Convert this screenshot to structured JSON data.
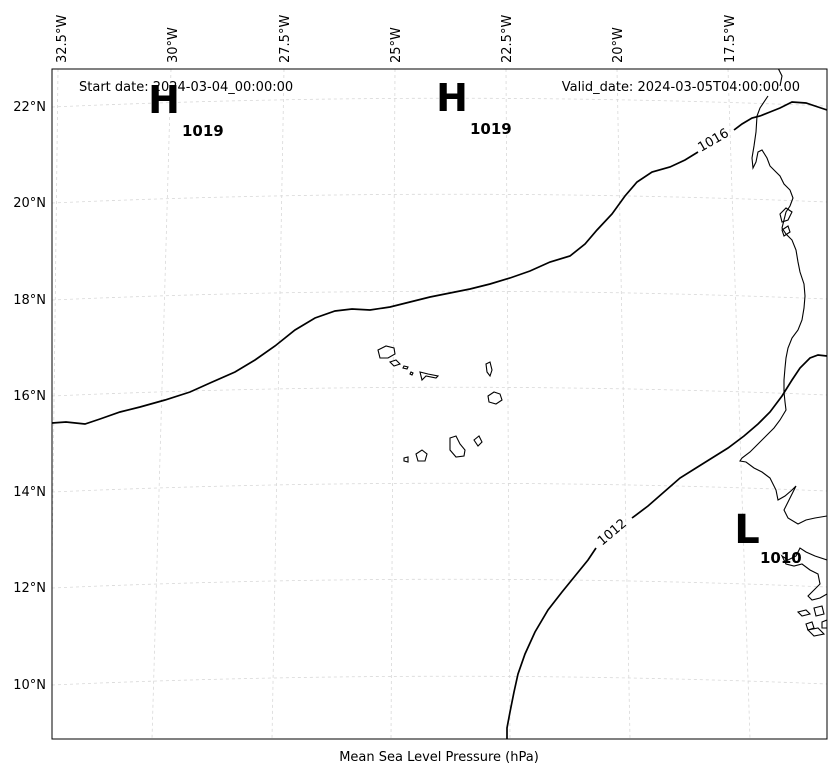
{
  "header": {
    "start_date": "Start date: 2024-03-04_00:00:00",
    "valid_date": "Valid_date: 2024-03-05T04:00:00.00"
  },
  "footer": {
    "xlabel": "Mean Sea Level Pressure (hPa)"
  },
  "axes": {
    "lon_labels": [
      "32.5°W",
      "30°W",
      "27.5°W",
      "25°W",
      "22.5°W",
      "20°W",
      "17.5°W"
    ],
    "lat_labels": [
      "22°N",
      "20°N",
      "18°N",
      "16°N",
      "14°N",
      "12°N",
      "10°N"
    ]
  },
  "isobars": [
    {
      "label": "1016",
      "value": 1016
    },
    {
      "label": "1012",
      "value": 1012
    }
  ],
  "pressure_centers": [
    {
      "type": "high",
      "symbol": "H",
      "value": "1019"
    },
    {
      "type": "high",
      "symbol": "H",
      "value": "1019"
    },
    {
      "type": "low",
      "symbol": "L",
      "value": "1010"
    }
  ],
  "chart_data": {
    "type": "map",
    "title": "",
    "xlabel": "Mean Sea Level Pressure (hPa)",
    "lon_range": [
      -33,
      -16.5
    ],
    "lat_range": [
      9,
      22.5
    ],
    "grid": true
  }
}
